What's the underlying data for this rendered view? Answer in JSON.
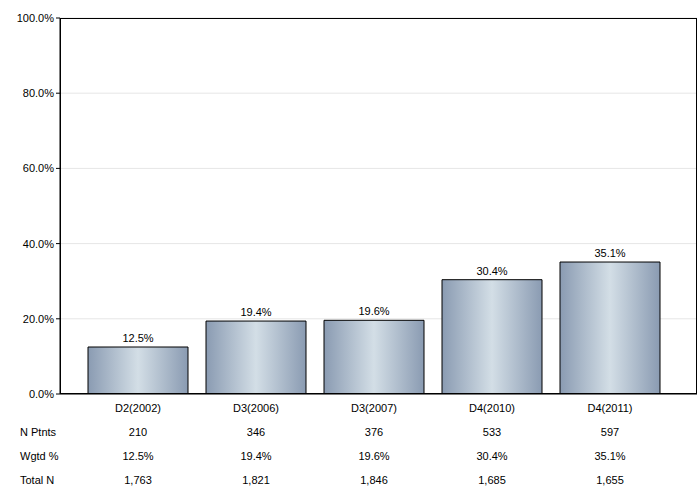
{
  "chart_data": {
    "type": "bar",
    "categories": [
      "D2(2002)",
      "D3(2006)",
      "D3(2007)",
      "D4(2010)",
      "D4(2011)"
    ],
    "values": [
      12.5,
      19.4,
      19.6,
      30.4,
      35.1
    ],
    "value_labels": [
      "12.5%",
      "19.4%",
      "19.6%",
      "30.4%",
      "35.1%"
    ],
    "data_labels": true,
    "color": "#8a9bb2",
    "ylim": [
      0,
      100
    ],
    "yticks": [
      {
        "value": 0,
        "label": "0.0%"
      },
      {
        "value": 20,
        "label": "20.0%"
      },
      {
        "value": 40,
        "label": "40.0%"
      },
      {
        "value": 60,
        "label": "60.0%"
      },
      {
        "value": 80,
        "label": "80.0%"
      },
      {
        "value": 100,
        "label": "100.0%"
      }
    ],
    "grid": true
  },
  "table": {
    "rows": [
      {
        "label": "N Ptnts",
        "cells": [
          "210",
          "346",
          "376",
          "533",
          "597"
        ]
      },
      {
        "label": "Wgtd %",
        "cells": [
          "12.5%",
          "19.4%",
          "19.6%",
          "30.4%",
          "35.1%"
        ]
      },
      {
        "label": "Total N",
        "cells": [
          "1,763",
          "1,821",
          "1,846",
          "1,685",
          "1,655"
        ]
      }
    ]
  }
}
